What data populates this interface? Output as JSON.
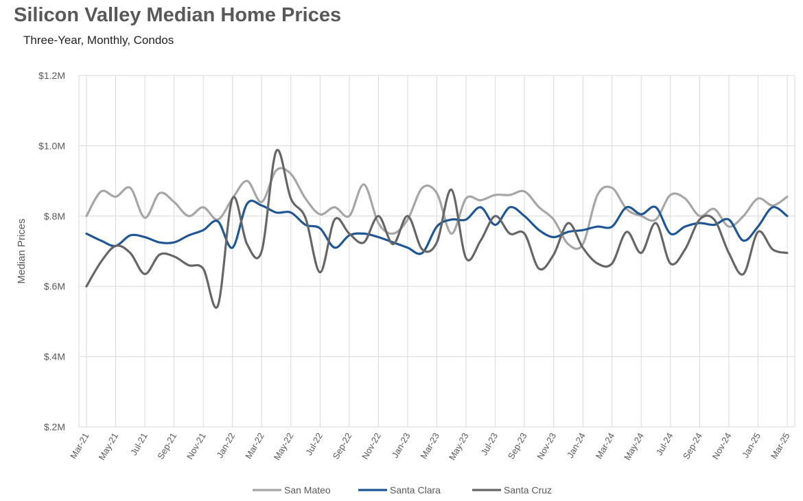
{
  "chart_data": {
    "type": "line",
    "title": "Silicon Valley Median Home Prices",
    "subtitle": "Three-Year, Monthly, Condos",
    "ylabel": "Median Prices",
    "xlabel": "",
    "ylim": [
      0.2,
      1.2
    ],
    "y_unit": "$M",
    "y_ticks": [
      "$.2M",
      "$.4M",
      "$.6M",
      "$.8M",
      "$1.0M",
      "$1.2M"
    ],
    "y_tick_values": [
      0.2,
      0.4,
      0.6,
      0.8,
      1.0,
      1.2
    ],
    "x": [
      "Mar-21",
      "Apr-21",
      "May-21",
      "Jun-21",
      "Jul-21",
      "Aug-21",
      "Sep-21",
      "Oct-21",
      "Nov-21",
      "Dec-21",
      "Jan-22",
      "Feb-22",
      "Mar-22",
      "Apr-22",
      "May-22",
      "Jun-22",
      "Jul-22",
      "Aug-22",
      "Sep-22",
      "Oct-22",
      "Nov-22",
      "Dec-22",
      "Jan-23",
      "Feb-23",
      "Mar-23",
      "Apr-23",
      "May-23",
      "Jun-23",
      "Jul-23",
      "Aug-23",
      "Sep-23",
      "Oct-23",
      "Nov-23",
      "Dec-23",
      "Jan-24",
      "Feb-24",
      "Mar-24",
      "Apr-24",
      "May-24",
      "Jun-24",
      "Jul-24",
      "Aug-24",
      "Sep-24",
      "Oct-24",
      "Nov-24",
      "Dec-24",
      "Jan-25",
      "Feb-25",
      "Mar-25"
    ],
    "x_tick_labels": [
      "Mar-21",
      "May-21",
      "Jul-21",
      "Sep-21",
      "Nov-21",
      "Jan-22",
      "Mar-22",
      "May-22",
      "Jul-22",
      "Sep-22",
      "Nov-22",
      "Jan-23",
      "Mar-23",
      "May-23",
      "Jul-23",
      "Sep-23",
      "Nov-23",
      "Jan-24",
      "Mar-24",
      "May-24",
      "Jul-24",
      "Sep-24",
      "Nov-24",
      "Jan-25",
      "Mar-25"
    ],
    "grid": true,
    "legend_position": "bottom",
    "series": [
      {
        "name": "San Mateo",
        "color": "#a6a6a6",
        "values": [
          0.8,
          0.87,
          0.855,
          0.88,
          0.795,
          0.865,
          0.84,
          0.8,
          0.825,
          0.79,
          0.85,
          0.9,
          0.84,
          0.93,
          0.92,
          0.85,
          0.805,
          0.825,
          0.8,
          0.89,
          0.78,
          0.75,
          0.79,
          0.88,
          0.865,
          0.75,
          0.85,
          0.845,
          0.86,
          0.86,
          0.87,
          0.825,
          0.79,
          0.72,
          0.72,
          0.86,
          0.88,
          0.82,
          0.8,
          0.79,
          0.86,
          0.85,
          0.8,
          0.82,
          0.77,
          0.8,
          0.85,
          0.83,
          0.855
        ]
      },
      {
        "name": "Santa Clara",
        "color": "#1f5694",
        "values": [
          0.75,
          0.73,
          0.715,
          0.745,
          0.74,
          0.725,
          0.725,
          0.745,
          0.76,
          0.785,
          0.71,
          0.835,
          0.83,
          0.81,
          0.81,
          0.775,
          0.765,
          0.71,
          0.745,
          0.75,
          0.74,
          0.725,
          0.71,
          0.695,
          0.77,
          0.79,
          0.79,
          0.825,
          0.775,
          0.825,
          0.8,
          0.76,
          0.74,
          0.755,
          0.76,
          0.77,
          0.77,
          0.825,
          0.805,
          0.825,
          0.75,
          0.77,
          0.78,
          0.775,
          0.79,
          0.73,
          0.77,
          0.825,
          0.8
        ]
      },
      {
        "name": "Santa Cruz",
        "color": "#666666",
        "values": [
          0.6,
          0.67,
          0.715,
          0.695,
          0.635,
          0.69,
          0.685,
          0.66,
          0.65,
          0.545,
          0.85,
          0.72,
          0.7,
          0.985,
          0.85,
          0.795,
          0.64,
          0.79,
          0.75,
          0.725,
          0.8,
          0.72,
          0.8,
          0.705,
          0.725,
          0.875,
          0.68,
          0.73,
          0.8,
          0.75,
          0.75,
          0.65,
          0.69,
          0.78,
          0.71,
          0.665,
          0.665,
          0.755,
          0.695,
          0.78,
          0.665,
          0.705,
          0.79,
          0.79,
          0.695,
          0.635,
          0.755,
          0.705,
          0.695
        ]
      }
    ]
  }
}
